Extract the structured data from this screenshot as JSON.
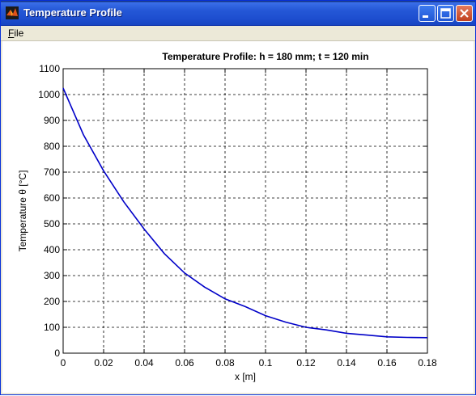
{
  "window": {
    "title": "Temperature Profile"
  },
  "menu": {
    "file_label": "File",
    "file_mnemonic": "F",
    "file_rest": "ile"
  },
  "chart_data": {
    "type": "line",
    "title": "Temperature Profile: h = 180 mm; t = 120 min",
    "xlabel": "x [m]",
    "ylabel": "Temperature  θ [°C]",
    "xlim": [
      0,
      0.18
    ],
    "ylim": [
      0,
      1100
    ],
    "xticks": [
      "0",
      "0.02",
      "0.04",
      "0.06",
      "0.08",
      "0.1",
      "0.12",
      "0.14",
      "0.16",
      "0.18"
    ],
    "yticks": [
      "0",
      "100",
      "200",
      "300",
      "400",
      "500",
      "600",
      "700",
      "800",
      "900",
      "1000",
      "1100"
    ],
    "grid": true,
    "series": [
      {
        "color": "#0000c8",
        "x": [
          0,
          0.01,
          0.02,
          0.03,
          0.04,
          0.05,
          0.06,
          0.07,
          0.08,
          0.09,
          0.1,
          0.11,
          0.12,
          0.13,
          0.14,
          0.15,
          0.16,
          0.17,
          0.18
        ],
        "y": [
          1025,
          845,
          705,
          585,
          480,
          385,
          310,
          255,
          210,
          180,
          145,
          120,
          100,
          90,
          77,
          70,
          63,
          61,
          60
        ]
      }
    ]
  }
}
